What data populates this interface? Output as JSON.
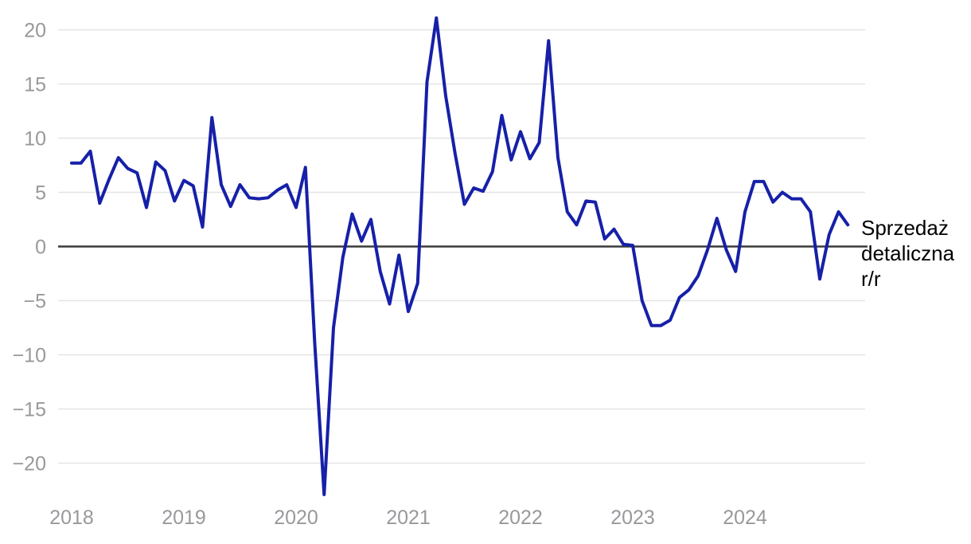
{
  "chart_data": {
    "type": "line",
    "title": "",
    "series": [
      {
        "name": "Sprzedaż detaliczna r/r",
        "start": "2018-01",
        "frequency": "monthly",
        "unit": "% r/r",
        "values": [
          7.7,
          7.7,
          8.8,
          4.0,
          6.2,
          8.2,
          7.2,
          6.8,
          3.6,
          7.8,
          7.0,
          4.2,
          6.1,
          5.6,
          1.8,
          11.9,
          5.7,
          3.7,
          5.7,
          4.5,
          4.4,
          4.5,
          5.2,
          5.7,
          3.6,
          7.3,
          -9.0,
          -22.9,
          -7.5,
          -1.0,
          3.0,
          0.5,
          2.5,
          -2.3,
          -5.3,
          -0.8,
          -6.0,
          -3.4,
          15.2,
          21.1,
          13.9,
          8.6,
          3.9,
          5.4,
          5.1,
          6.9,
          12.1,
          8.0,
          10.6,
          8.1,
          9.6,
          19.0,
          8.2,
          3.2,
          2.0,
          4.2,
          4.1,
          0.7,
          1.6,
          0.2,
          0.1,
          -5.0,
          -7.3,
          -7.3,
          -6.8,
          -4.7,
          -4.0,
          -2.7,
          -0.3,
          2.6,
          -0.3,
          -2.3,
          3.2,
          6.0,
          6.0,
          4.1,
          5.0,
          4.4,
          4.4,
          3.2,
          -3.0,
          1.1,
          3.2,
          2.0
        ]
      }
    ],
    "x_tick_labels": [
      "2018",
      "2019",
      "2020",
      "2021",
      "2022",
      "2023",
      "2024"
    ],
    "y_ticks": [
      20,
      15,
      10,
      5,
      0,
      -5,
      -10,
      -15,
      -20
    ],
    "y_tick_labels": [
      "20",
      "15",
      "10",
      "5",
      "0",
      "−5",
      "−10",
      "−15",
      "−20"
    ],
    "ylim": [
      -24,
      22
    ],
    "grid": "horizontal gridlines only, zero line emphasized",
    "legend_position": "annotation at right end of line",
    "annotation_lines": [
      "Sprzedaż",
      "detaliczna",
      "r/r"
    ],
    "colors": {
      "line": "#1620a8",
      "grid": "#e4e4e4",
      "zero_line": "#3a3a3a",
      "tick_text": "#97999c",
      "annotation_text": "#000000",
      "background": "#ffffff"
    }
  }
}
